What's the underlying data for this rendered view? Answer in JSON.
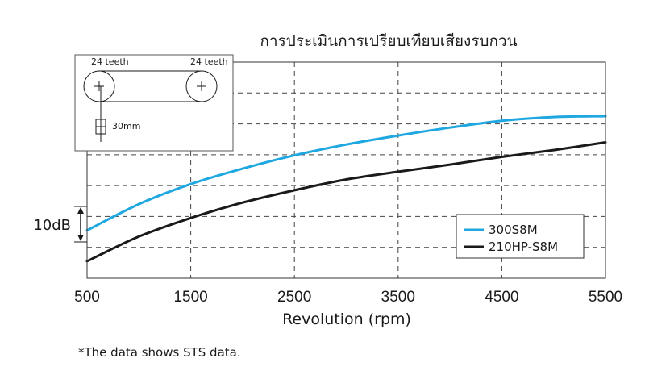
{
  "chart_data": {
    "type": "line",
    "title": "การประเมินการเปรียบเทียบเสียงรบกวน",
    "xlabel": "Revolution (rpm)",
    "ylabel": "",
    "x_ticks": [
      500,
      1500,
      2500,
      3500,
      4500,
      5500
    ],
    "xlim": [
      500,
      5500
    ],
    "ylim": [
      0,
      7
    ],
    "scale_bar": {
      "label": "10dB",
      "value_units": 1
    },
    "grid": true,
    "legend_position": "bottom-right",
    "series": [
      {
        "name": "300S8M",
        "color": "#1ea7e0",
        "x": [
          500,
          1000,
          1500,
          2000,
          2500,
          3000,
          3500,
          4000,
          4500,
          5000,
          5500
        ],
        "y": [
          1.55,
          2.4,
          3.05,
          3.55,
          3.98,
          4.33,
          4.62,
          4.88,
          5.1,
          5.22,
          5.25
        ]
      },
      {
        "name": "210HP-S8M",
        "color": "#1a1a1a",
        "x": [
          500,
          1000,
          1500,
          2000,
          2500,
          3000,
          3500,
          4000,
          4500,
          5000,
          5500
        ],
        "y": [
          0.55,
          1.35,
          1.95,
          2.45,
          2.85,
          3.2,
          3.45,
          3.68,
          3.93,
          4.15,
          4.4
        ]
      }
    ],
    "inset": {
      "left_pulley_label": "24 teeth",
      "right_pulley_label": "24 teeth",
      "offset_label": "30mm"
    }
  },
  "footnote": "*The data shows STS data."
}
